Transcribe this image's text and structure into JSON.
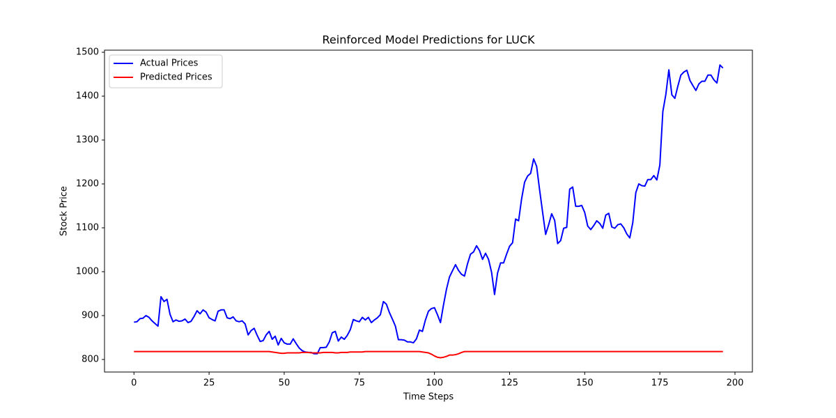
{
  "chart_data": {
    "type": "line",
    "title": "Reinforced Model Predictions for LUCK",
    "x_label": "Time Steps",
    "y_label": "Stock Price",
    "x": [
      0,
      1,
      2,
      3,
      4,
      5,
      6,
      7,
      8,
      9,
      10,
      11,
      12,
      13,
      14,
      15,
      16,
      17,
      18,
      19,
      20,
      21,
      22,
      23,
      24,
      25,
      26,
      27,
      28,
      29,
      30,
      31,
      32,
      33,
      34,
      35,
      36,
      37,
      38,
      39,
      40,
      41,
      42,
      43,
      44,
      45,
      46,
      47,
      48,
      49,
      50,
      51,
      52,
      53,
      54,
      55,
      56,
      57,
      58,
      59,
      60,
      61,
      62,
      63,
      64,
      65,
      66,
      67,
      68,
      69,
      70,
      71,
      72,
      73,
      74,
      75,
      76,
      77,
      78,
      79,
      80,
      81,
      82,
      83,
      84,
      85,
      86,
      87,
      88,
      89,
      90,
      91,
      92,
      93,
      94,
      95,
      96,
      97,
      98,
      99,
      100,
      101,
      102,
      103,
      104,
      105,
      106,
      107,
      108,
      109,
      110,
      111,
      112,
      113,
      114,
      115,
      116,
      117,
      118,
      119,
      120,
      121,
      122,
      123,
      124,
      125,
      126,
      127,
      128,
      129,
      130,
      131,
      132,
      133,
      134,
      135,
      136,
      137,
      138,
      139,
      140,
      141,
      142,
      143,
      144,
      145,
      146,
      147,
      148,
      149,
      150,
      151,
      152,
      153,
      154,
      155,
      156,
      157,
      158,
      159,
      160,
      161,
      162,
      163,
      164,
      165,
      166,
      167,
      168,
      169,
      170,
      171,
      172,
      173,
      174,
      175,
      176,
      177,
      178,
      179,
      180,
      181,
      182,
      183,
      184,
      185,
      186,
      187,
      188,
      189,
      190,
      191,
      192,
      193,
      194,
      195,
      196
    ],
    "series": [
      {
        "name": "Actual Prices",
        "color": "#0000ff",
        "values": [
          885,
          886,
          893,
          894,
          900,
          896,
          888,
          882,
          876,
          943,
          932,
          937,
          903,
          886,
          890,
          887,
          888,
          892,
          884,
          887,
          898,
          911,
          904,
          913,
          908,
          895,
          891,
          888,
          910,
          913,
          913,
          895,
          893,
          897,
          888,
          886,
          888,
          881,
          856,
          866,
          871,
          855,
          841,
          843,
          856,
          864,
          846,
          853,
          833,
          848,
          838,
          835,
          835,
          847,
          836,
          826,
          820,
          817,
          816,
          816,
          813,
          813,
          827,
          827,
          828,
          840,
          861,
          864,
          842,
          851,
          846,
          855,
          868,
          891,
          888,
          886,
          896,
          890,
          896,
          884,
          890,
          895,
          902,
          932,
          926,
          907,
          892,
          876,
          845,
          845,
          844,
          840,
          840,
          838,
          847,
          867,
          864,
          890,
          910,
          916,
          918,
          902,
          884,
          924,
          960,
          988,
          1002,
          1016,
          1003,
          994,
          990,
          1018,
          1040,
          1045,
          1059,
          1048,
          1028,
          1042,
          1028,
          999,
          948,
          997,
          1020,
          1020,
          1040,
          1058,
          1066,
          1120,
          1116,
          1166,
          1204,
          1218,
          1224,
          1257,
          1240,
          1186,
          1135,
          1085,
          1107,
          1132,
          1117,
          1064,
          1071,
          1099,
          1101,
          1188,
          1193,
          1149,
          1149,
          1151,
          1135,
          1104,
          1096,
          1105,
          1116,
          1110,
          1099,
          1129,
          1133,
          1102,
          1099,
          1107,
          1109,
          1100,
          1086,
          1077,
          1112,
          1180,
          1200,
          1196,
          1195,
          1210,
          1210,
          1219,
          1209,
          1243,
          1365,
          1404,
          1460,
          1403,
          1395,
          1423,
          1448,
          1455,
          1459,
          1436,
          1424,
          1413,
          1428,
          1434,
          1434,
          1448,
          1448,
          1437,
          1430,
          1471,
          1464
        ]
      },
      {
        "name": "Predicted Prices",
        "color": "#ff0000",
        "values": [
          818,
          818,
          818,
          818,
          818,
          818,
          818,
          818,
          818,
          818,
          818,
          818,
          818,
          818,
          818,
          818,
          818,
          818,
          818,
          818,
          818,
          818,
          818,
          818,
          818,
          818,
          818,
          818,
          818,
          818,
          818,
          818,
          818,
          818,
          818,
          818,
          818,
          818,
          818,
          818,
          818,
          818,
          818,
          818,
          818,
          818,
          817,
          816,
          815,
          814,
          814,
          815,
          815,
          815,
          815,
          815,
          816,
          816,
          816,
          815,
          815,
          815,
          815,
          816,
          816,
          816,
          816,
          815,
          815,
          816,
          816,
          816,
          817,
          817,
          817,
          817,
          817,
          818,
          818,
          818,
          818,
          818,
          818,
          818,
          818,
          818,
          818,
          818,
          818,
          818,
          818,
          818,
          818,
          818,
          818,
          818,
          817,
          816,
          815,
          812,
          808,
          805,
          804,
          805,
          807,
          810,
          810,
          811,
          813,
          816,
          818,
          818,
          818,
          818,
          818,
          818,
          818,
          818,
          818,
          818,
          818,
          818,
          818,
          818,
          818,
          818,
          818,
          818,
          818,
          818,
          818,
          818,
          818,
          818,
          818,
          818,
          818,
          818,
          818,
          818,
          818,
          818,
          818,
          818,
          818,
          818,
          818,
          818,
          818,
          818,
          818,
          818,
          818,
          818,
          818,
          818,
          818,
          818,
          818,
          818,
          818,
          818,
          818,
          818,
          818,
          818,
          818,
          818,
          818,
          818,
          818,
          818,
          818,
          818,
          818,
          818,
          818,
          818,
          818,
          818,
          818,
          818,
          818,
          818,
          818,
          818,
          818,
          818,
          818,
          818,
          818,
          818,
          818,
          818,
          818,
          818,
          818
        ]
      }
    ],
    "xlim": [
      -9.8,
      205.8
    ],
    "xticks": [
      0,
      25,
      50,
      75,
      100,
      125,
      150,
      175,
      200
    ],
    "ylim": [
      771.4,
      1504.8
    ],
    "yticks": [
      800,
      900,
      1000,
      1100,
      1200,
      1300,
      1400,
      1500
    ],
    "legend": "upper left"
  }
}
